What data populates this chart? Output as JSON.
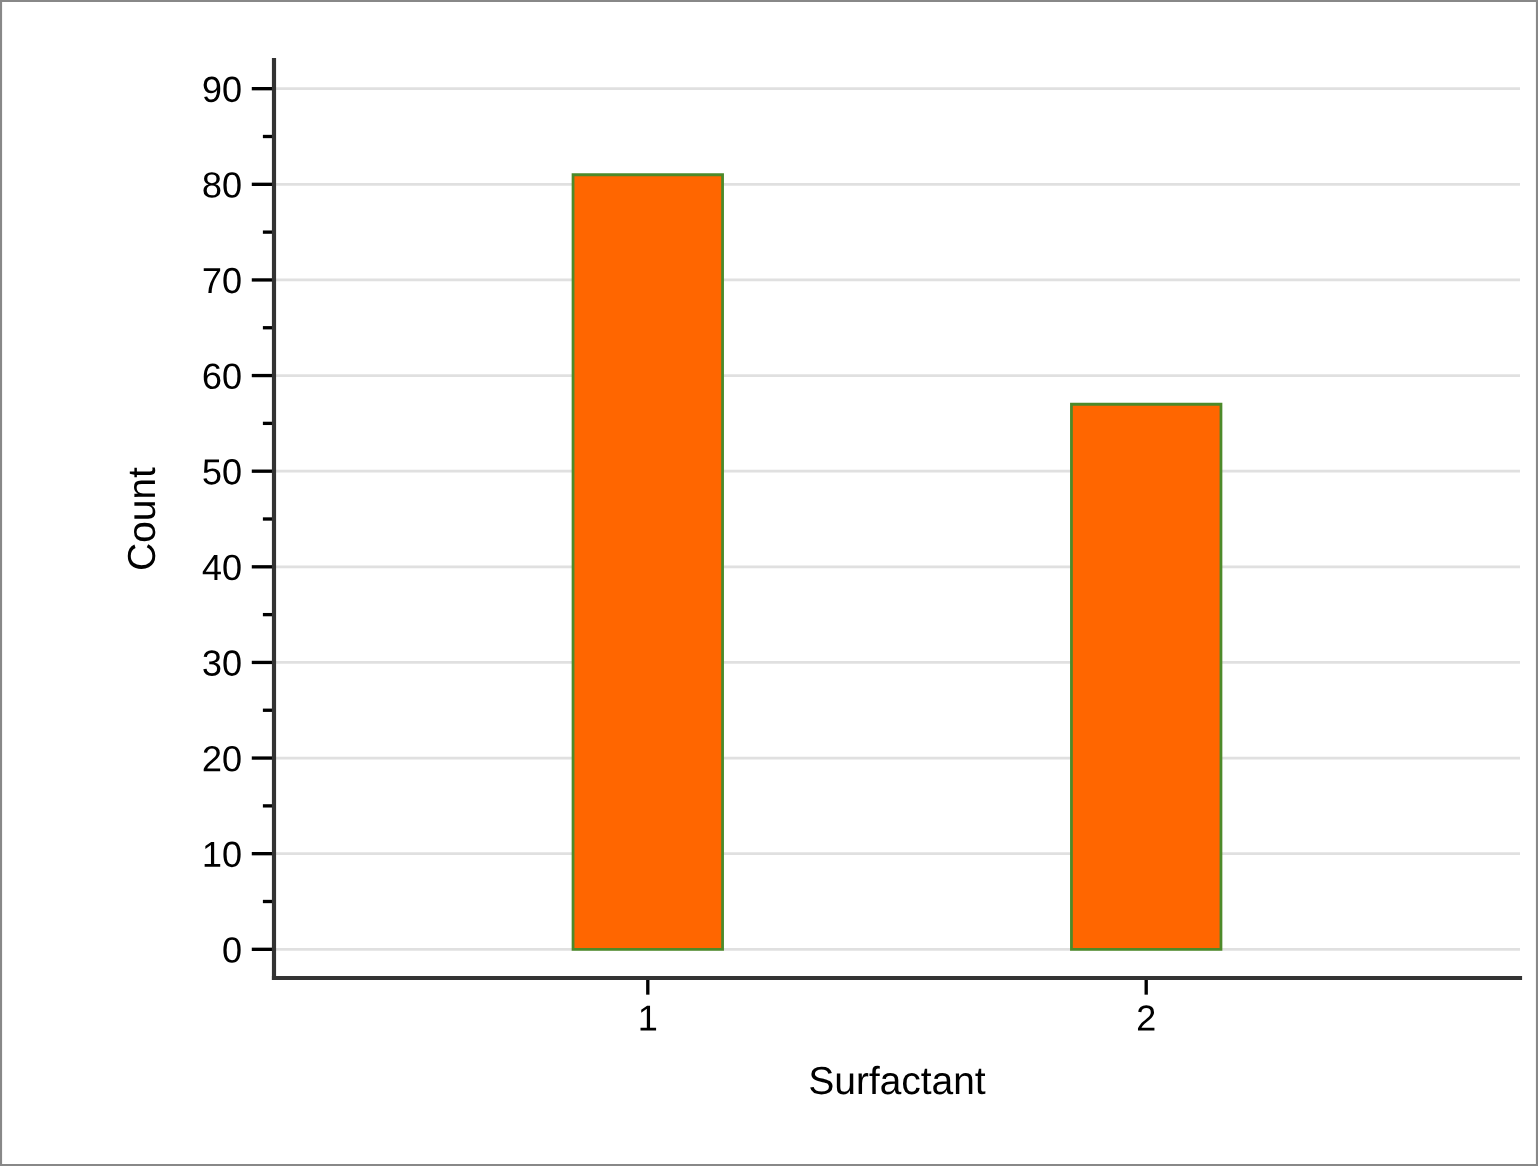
{
  "chart_data": {
    "type": "bar",
    "xlabel": "Surfactant",
    "ylabel": "Count",
    "categories": [
      "1",
      "2"
    ],
    "values": [
      81,
      57
    ],
    "color": "#ff6600",
    "ylim": [
      -3,
      93
    ],
    "yticks": [
      0,
      10,
      20,
      30,
      40,
      50,
      60,
      70,
      80,
      90
    ],
    "grid": "y"
  }
}
